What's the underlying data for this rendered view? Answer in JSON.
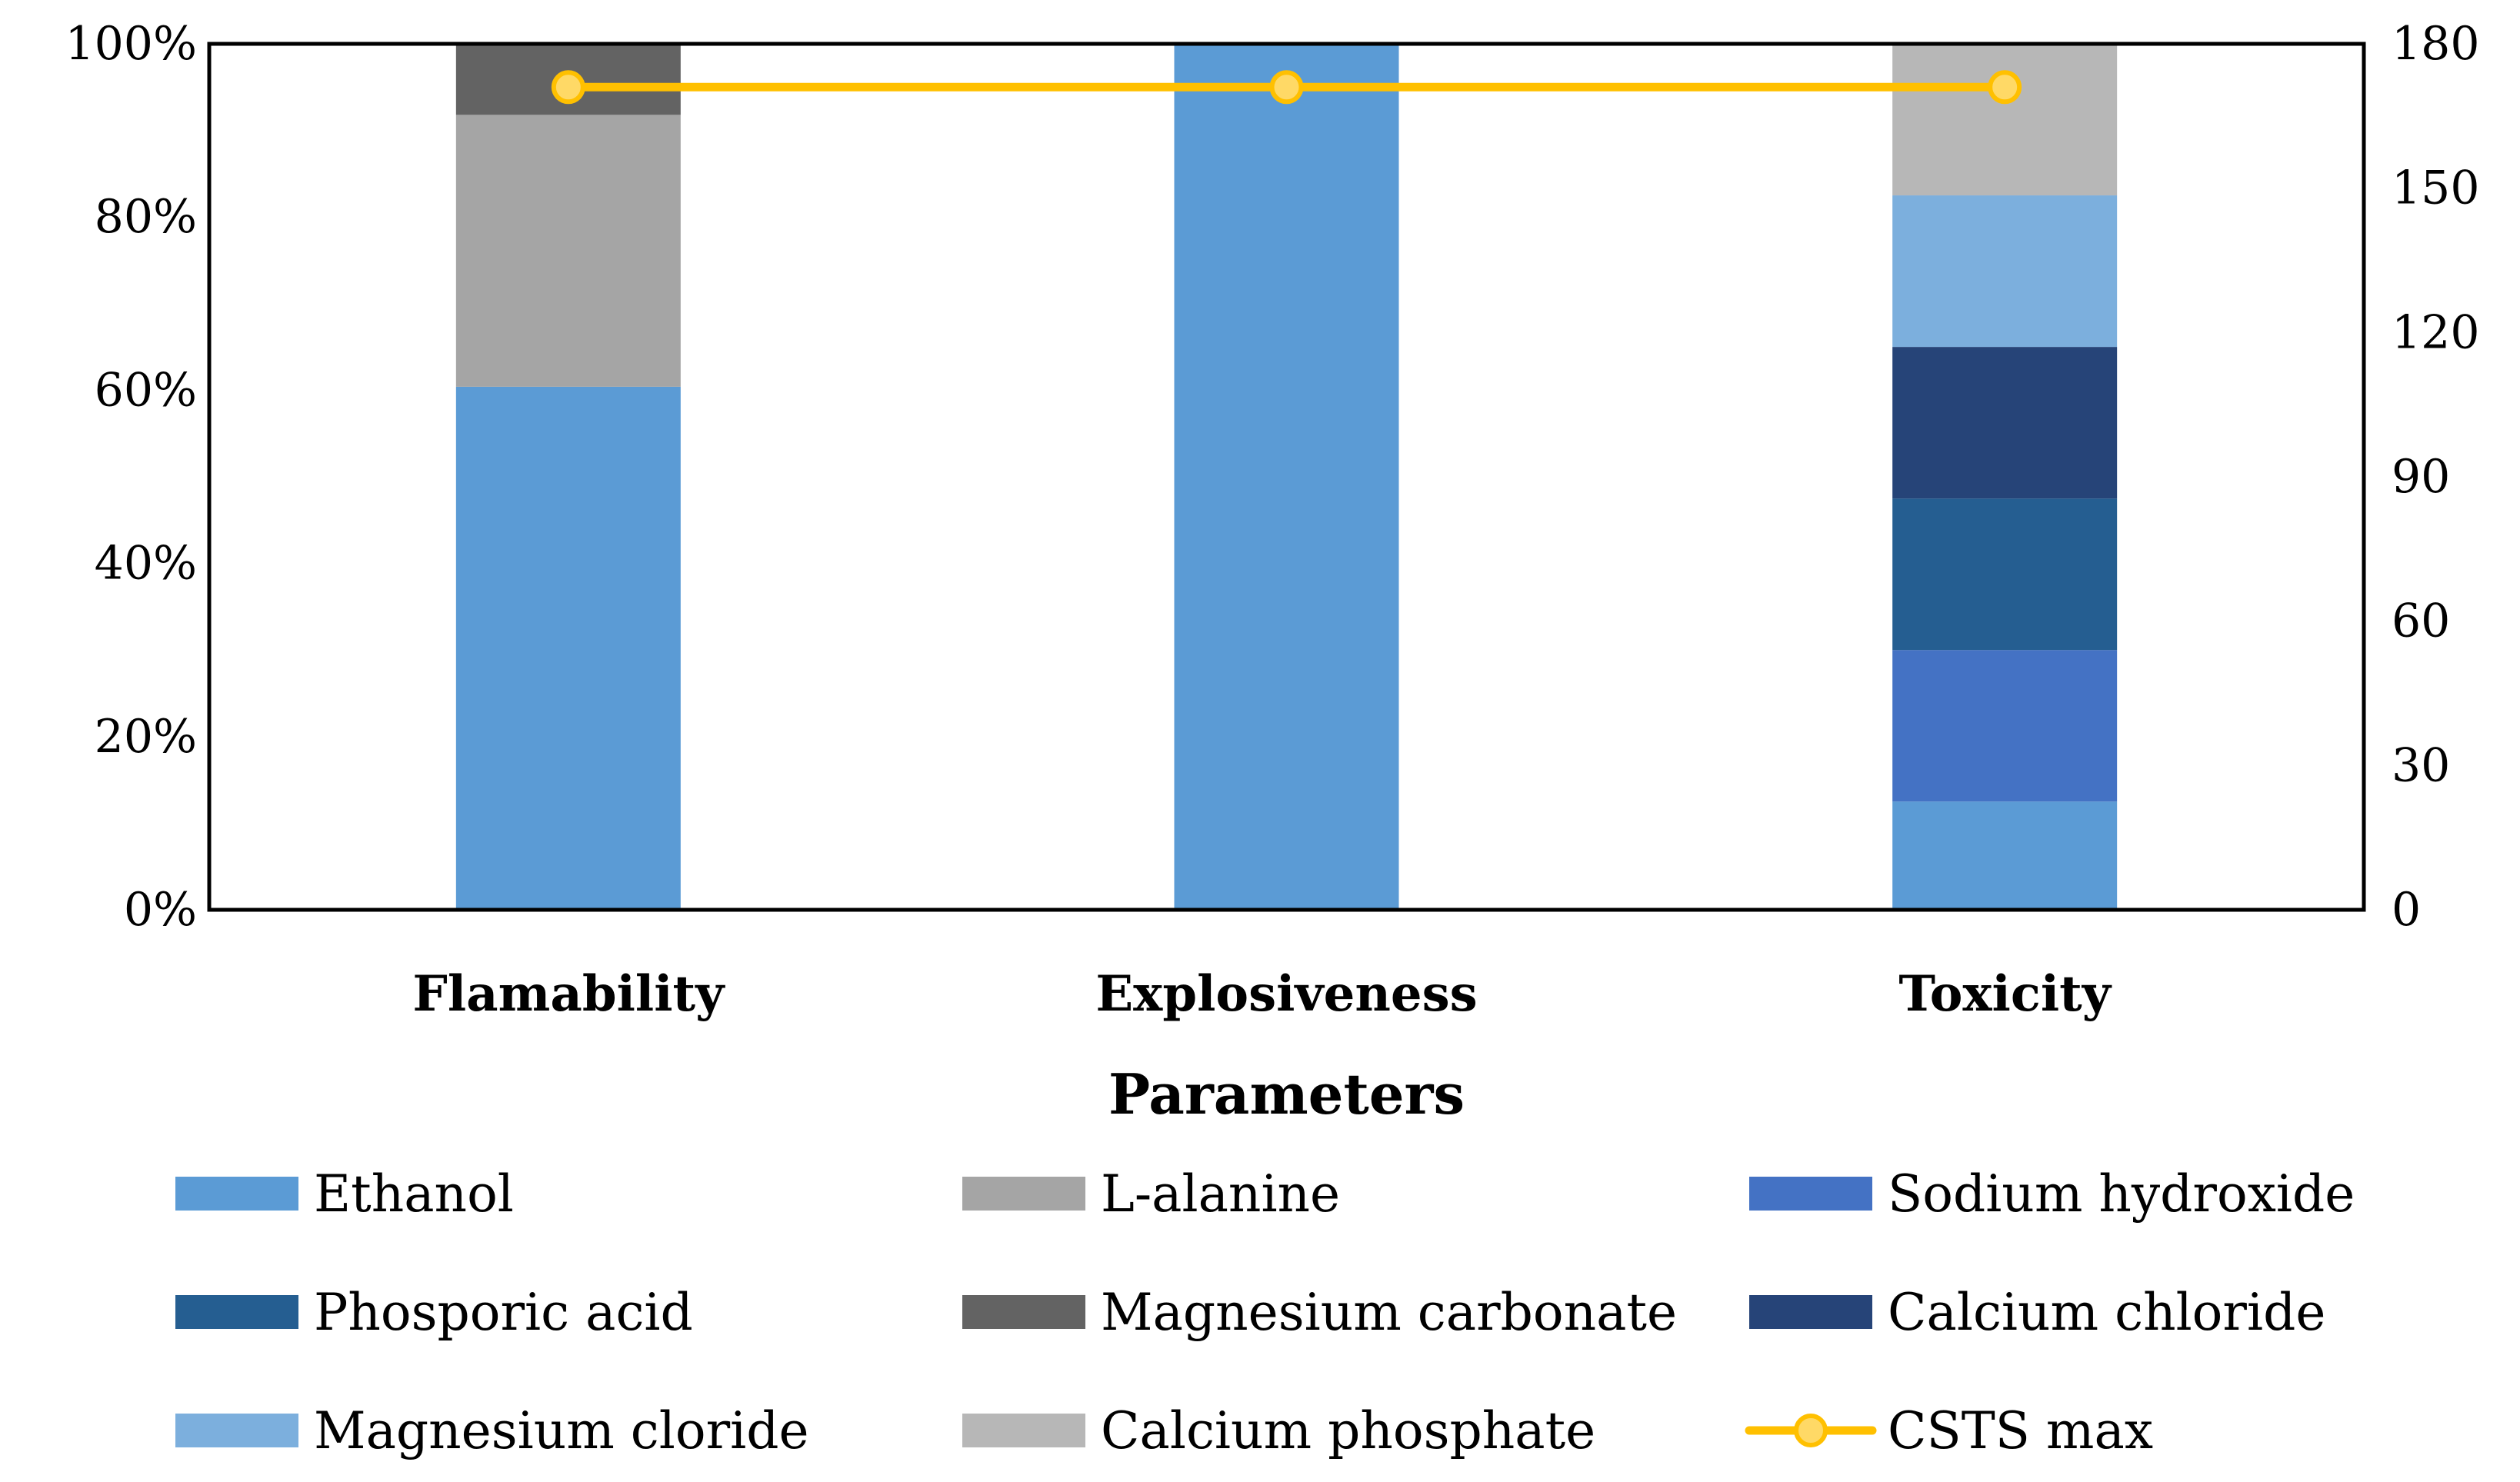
{
  "chart_data": {
    "type": "bar",
    "stacked": true,
    "categories": [
      "Flamability",
      "Explosiveness",
      "Toxicity"
    ],
    "xlabel": "Parameters",
    "ylabel": "",
    "ylim": [
      0,
      100
    ],
    "y_ticks": [
      "0%",
      "20%",
      "40%",
      "60%",
      "80%",
      "100%"
    ],
    "y2lim": [
      0,
      180
    ],
    "y2_ticks": [
      "0",
      "30",
      "60",
      "90",
      "120",
      "150",
      "180"
    ],
    "series": [
      {
        "name": "Ethanol",
        "values": [
          60.4,
          100,
          12.5
        ],
        "color": "#5B9BD5"
      },
      {
        "name": "L-alanine",
        "values": [
          31.4,
          0,
          0
        ],
        "color": "#A5A5A5"
      },
      {
        "name": "Sodium hydroxide",
        "values": [
          0,
          0,
          17.5
        ],
        "color": "#4472C4"
      },
      {
        "name": "Phosporic acid",
        "values": [
          0,
          0,
          17.5
        ],
        "color": "#255E91"
      },
      {
        "name": "Magnesium carbonate",
        "values": [
          8.2,
          0,
          0
        ],
        "color": "#636363"
      },
      {
        "name": "Calcium chloride",
        "values": [
          0,
          0,
          17.5
        ],
        "color": "#264478"
      },
      {
        "name": "Magnesium cloride",
        "values": [
          0,
          0,
          17.5
        ],
        "color": "#7CAFDD"
      },
      {
        "name": "Calcium phosphate",
        "values": [
          0,
          0,
          17.5
        ],
        "color": "#B7B7B7"
      }
    ],
    "line_series": {
      "name": "CSTS max",
      "axis": "secondary",
      "values": [
        171,
        171,
        171
      ],
      "color": "#FFC000",
      "marker_fill": "#FFD966"
    },
    "legend_position": "bottom"
  }
}
